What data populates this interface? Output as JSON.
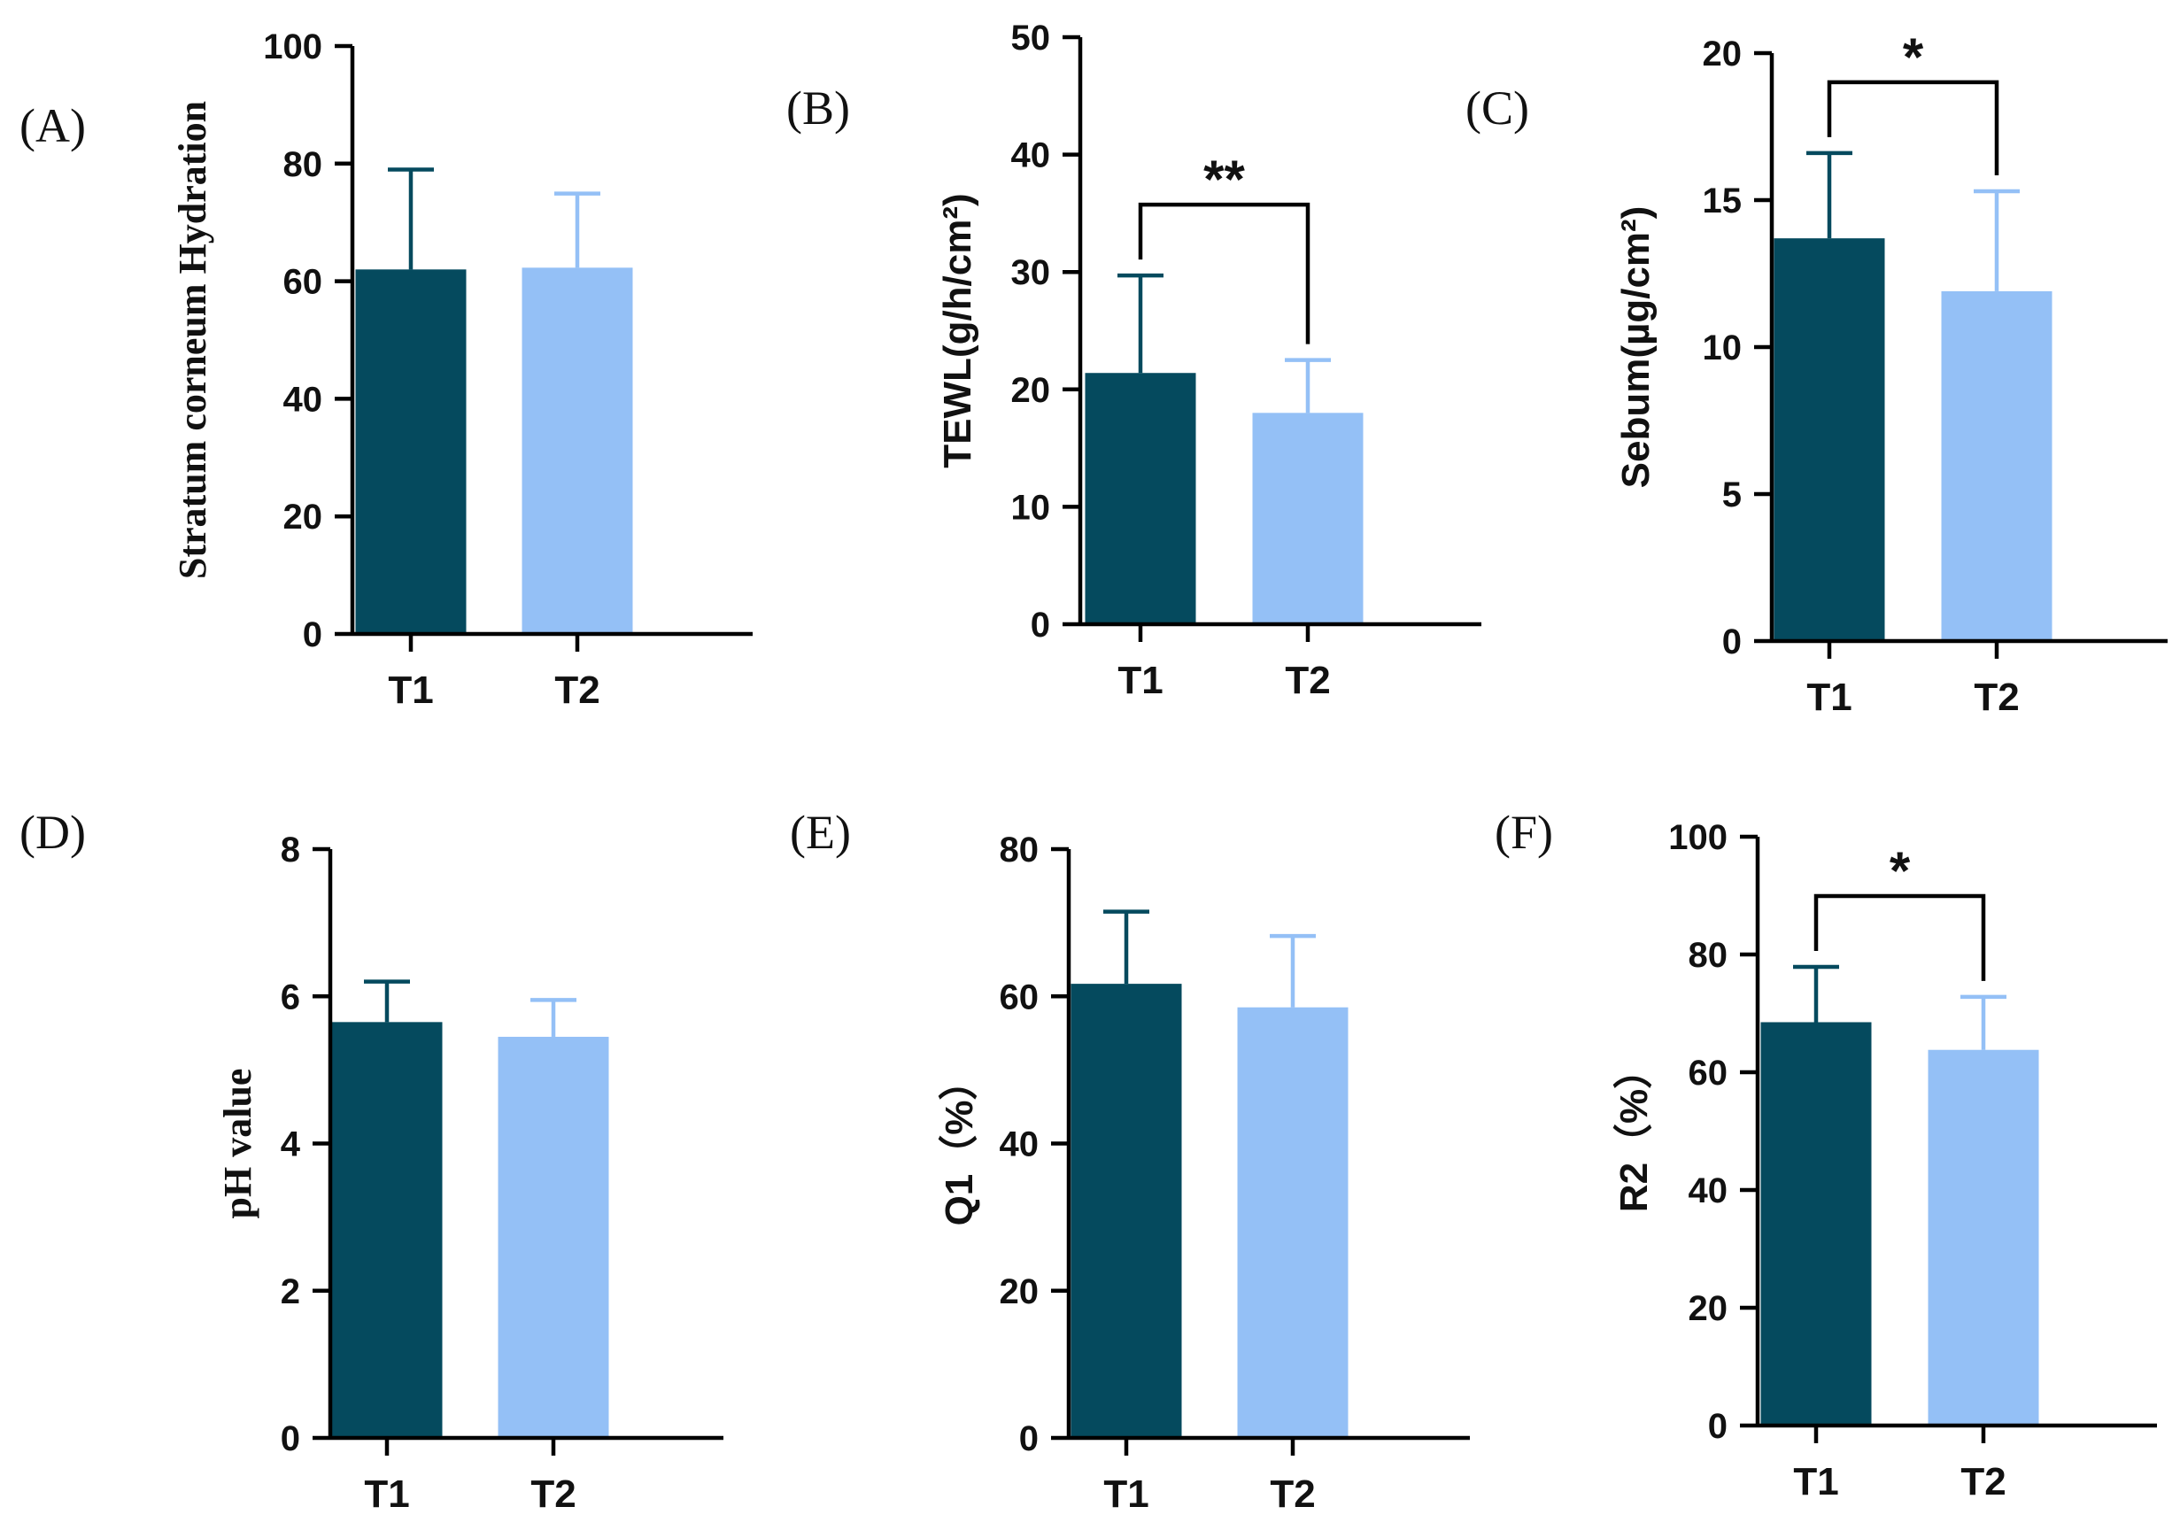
{
  "colors": {
    "T1": "#054a5e",
    "T2": "#94c0f6"
  },
  "chart_data": [
    {
      "type": "bar",
      "panel": "(A)",
      "ylabel": "Stratum corneum Hydration",
      "categories": [
        "T1",
        "T2"
      ],
      "values": [
        62,
        62.3
      ],
      "errors": [
        17,
        12.6
      ],
      "ylim": [
        0,
        100
      ],
      "yticks": [
        0,
        20,
        40,
        60,
        80,
        100
      ],
      "significance": null
    },
    {
      "type": "bar",
      "panel": "(B)",
      "ylabel": "TEWL(g/h/cm²)",
      "categories": [
        "T1",
        "T2"
      ],
      "values": [
        21.4,
        18
      ],
      "errors": [
        8.3,
        4.5
      ],
      "ylim": [
        0,
        50
      ],
      "yticks": [
        0,
        10,
        20,
        30,
        40,
        50
      ],
      "significance": "**"
    },
    {
      "type": "bar",
      "panel": "(C)",
      "ylabel": "Sebum(µg/cm²)",
      "categories": [
        "T1",
        "T2"
      ],
      "values": [
        13.7,
        11.9
      ],
      "errors": [
        2.9,
        3.4
      ],
      "ylim": [
        0,
        20
      ],
      "yticks": [
        0,
        5,
        10,
        15,
        20
      ],
      "significance": "*"
    },
    {
      "type": "bar",
      "panel": "(D)",
      "ylabel": "pH value",
      "categories": [
        "T1",
        "T2"
      ],
      "values": [
        5.65,
        5.45
      ],
      "errors": [
        0.55,
        0.5
      ],
      "ylim": [
        0,
        8
      ],
      "yticks": [
        0,
        2,
        4,
        6,
        8
      ],
      "significance": null
    },
    {
      "type": "bar",
      "panel": "(E)",
      "ylabel": "Q1（%）",
      "categories": [
        "T1",
        "T2"
      ],
      "values": [
        61.7,
        58.5
      ],
      "errors": [
        9.8,
        9.7
      ],
      "ylim": [
        0,
        80
      ],
      "yticks": [
        0,
        20,
        40,
        60,
        80
      ],
      "significance": null
    },
    {
      "type": "bar",
      "panel": "(F)",
      "ylabel": "R2（%）",
      "categories": [
        "T1",
        "T2"
      ],
      "values": [
        68.5,
        63.8
      ],
      "errors": [
        9.4,
        9
      ],
      "ylim": [
        0,
        100
      ],
      "yticks": [
        0,
        20,
        40,
        60,
        80,
        100
      ],
      "significance": "*"
    }
  ]
}
